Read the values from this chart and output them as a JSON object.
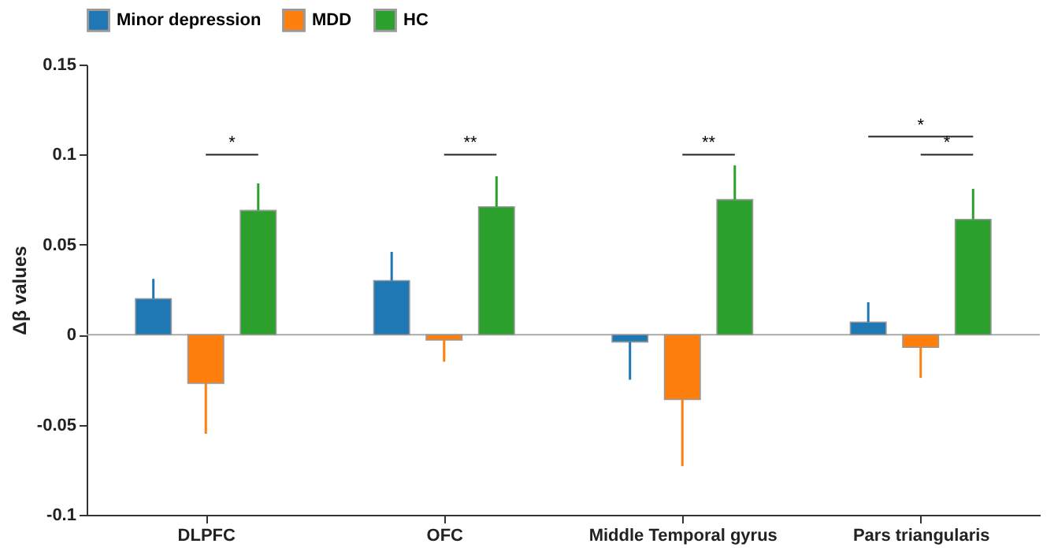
{
  "chart_data": {
    "type": "bar",
    "ylabel": "Δβ values",
    "categories": [
      "DLPFC",
      "OFC",
      "Middle Temporal gyrus",
      "Pars triangularis"
    ],
    "series": [
      {
        "name": "Minor depression",
        "color": "#1f77b4",
        "values": [
          0.02,
          0.03,
          -0.004,
          0.007
        ],
        "errors": [
          [
            0.02,
            0.031
          ],
          [
            0.03,
            0.046
          ],
          [
            -0.025,
            -0.004
          ],
          [
            0.007,
            0.018
          ]
        ]
      },
      {
        "name": "MDD",
        "color": "#ff7f0e",
        "values": [
          -0.027,
          -0.003,
          -0.036,
          -0.007
        ],
        "errors": [
          [
            -0.055,
            -0.027
          ],
          [
            -0.015,
            -0.003
          ],
          [
            -0.073,
            -0.036
          ],
          [
            -0.024,
            -0.007
          ]
        ]
      },
      {
        "name": "HC",
        "color": "#2ca02c",
        "values": [
          0.069,
          0.071,
          0.075,
          0.064
        ],
        "errors": [
          [
            0.069,
            0.084
          ],
          [
            0.071,
            0.088
          ],
          [
            0.075,
            0.094
          ],
          [
            0.064,
            0.081
          ]
        ]
      }
    ],
    "ylim": [
      -0.1,
      0.15
    ],
    "yticks": [
      -0.1,
      -0.05,
      0,
      0.05,
      0.1,
      0.15
    ],
    "ref_lines": [
      {
        "axis": "y",
        "value": 0,
        "color": "#aaaaaa"
      }
    ],
    "annotations": [
      "*",
      "**",
      "**",
      "*",
      "*"
    ],
    "legend": "top",
    "grid": false
  }
}
